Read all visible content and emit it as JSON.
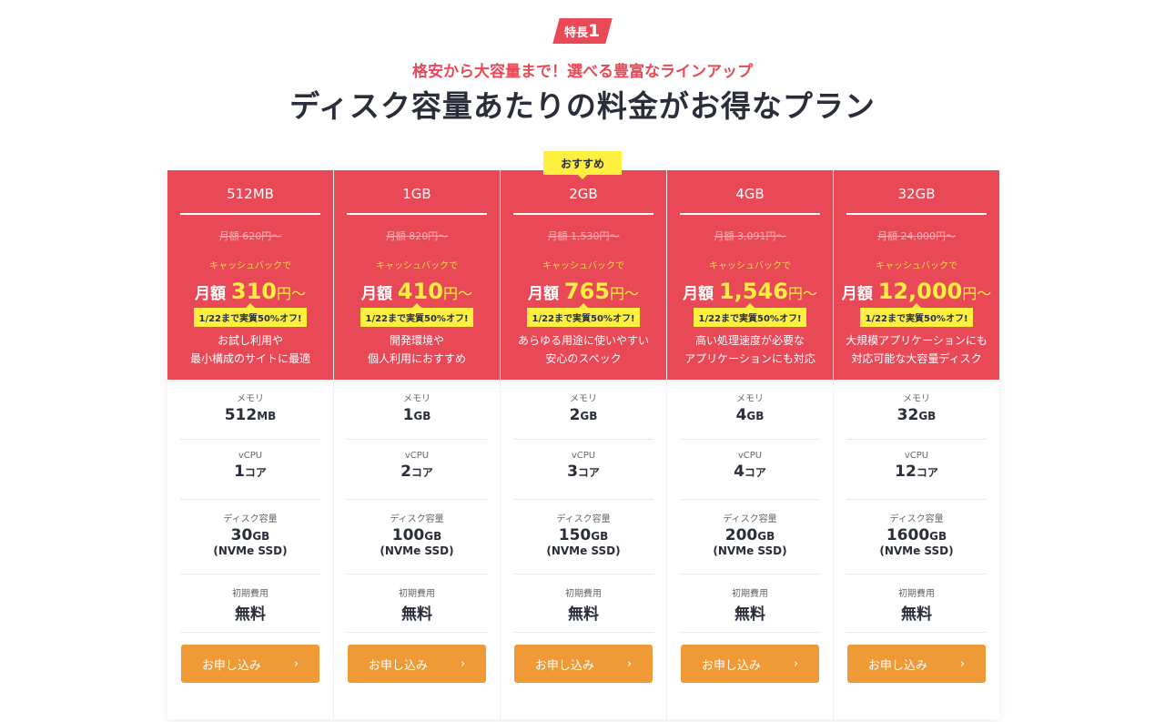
{
  "header": {
    "badge_label": "特長",
    "badge_number": "1",
    "subtitle": "格安から大容量まで！選べる豊富なラインアップ",
    "title": "ディスク容量あたりの料金がお得なプラン"
  },
  "labels": {
    "recommended": "おすすめ",
    "cashback": "キャッシュバックで",
    "monthly": "月額",
    "yen": "円～",
    "offer": "1/22まで実質50%オフ!",
    "memory": "メモリ",
    "vcpu": "vCPU",
    "disk": "ディスク容量",
    "ssd": "(NVMe SSD)",
    "initial": "初期費用",
    "initial_value": "無料",
    "core": "コア",
    "apply": "お申し込み",
    "chevron": "›"
  },
  "colors": {
    "red": "#e94856",
    "yellow": "#ffef3f",
    "orange": "#f09a37"
  },
  "plans": [
    {
      "name": "512MB",
      "old_price": "月額 620円～",
      "price": "310",
      "desc1": "お試し利用や",
      "desc2": "最小構成のサイトに最適",
      "mem": "512",
      "mem_unit": "MB",
      "cpu": "1",
      "disk": "30",
      "disk_unit": "GB",
      "recommended": false
    },
    {
      "name": "1GB",
      "old_price": "月額 820円～",
      "price": "410",
      "desc1": "開発環境や",
      "desc2": "個人利用におすすめ",
      "mem": "1",
      "mem_unit": "GB",
      "cpu": "2",
      "disk": "100",
      "disk_unit": "GB",
      "recommended": false
    },
    {
      "name": "2GB",
      "old_price": "月額 1,530円～",
      "price": "765",
      "desc1": "あらゆる用途に使いやすい",
      "desc2": "安心のスペック",
      "mem": "2",
      "mem_unit": "GB",
      "cpu": "3",
      "disk": "150",
      "disk_unit": "GB",
      "recommended": true
    },
    {
      "name": "4GB",
      "old_price": "月額 3,091円～",
      "price": "1,546",
      "desc1": "高い処理速度が必要な",
      "desc2": "アプリケーションにも対応",
      "mem": "4",
      "mem_unit": "GB",
      "cpu": "4",
      "disk": "200",
      "disk_unit": "GB",
      "recommended": false
    },
    {
      "name": "32GB",
      "old_price": "月額 24,000円～",
      "price": "12,000",
      "desc1": "大規模アプリケーションにも",
      "desc2": "対応可能な大容量ディスク",
      "mem": "32",
      "mem_unit": "GB",
      "cpu": "12",
      "disk": "1600",
      "disk_unit": "GB",
      "recommended": false
    }
  ]
}
